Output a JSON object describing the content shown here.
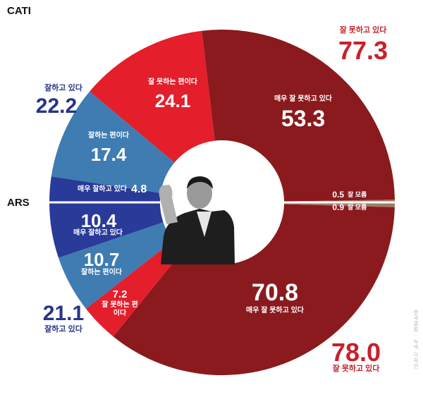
{
  "method_top": "CATI",
  "method_bottom": "ARS",
  "credit": "한국갤럽 · 녹색 디자인",
  "chart_data": {
    "type": "pie",
    "subtype": "split-donut",
    "panels": [
      {
        "method": "CATI",
        "half": "top",
        "slices": [
          {
            "label": "매우 잘하고 있다",
            "value": 4.8,
            "color": "#2a3a98",
            "group": "positive"
          },
          {
            "label": "잘하는 편이다",
            "value": 17.4,
            "color": "#3e7cb2",
            "group": "positive"
          },
          {
            "label": "잘 못하는 편이다",
            "value": 24.1,
            "color": "#e41e2b",
            "group": "negative"
          },
          {
            "label": "매우 잘 못하고 있다",
            "value": 53.3,
            "color": "#8a1a1e",
            "group": "negative"
          },
          {
            "label": "잘 모름",
            "value": 0.5,
            "color": "#a07a66",
            "group": "unknown"
          }
        ],
        "totals": [
          {
            "label": "잘하고 있다",
            "value": 22.2,
            "color": "#26348a"
          },
          {
            "label": "잘 못하고 있다",
            "value": 77.3,
            "color": "#c8202a"
          }
        ]
      },
      {
        "method": "ARS",
        "half": "bottom",
        "slices": [
          {
            "label": "매우 잘하고 있다",
            "value": 10.4,
            "color": "#2a3a98",
            "group": "positive"
          },
          {
            "label": "잘하는 편이다",
            "value": 10.7,
            "color": "#3e7cb2",
            "group": "positive"
          },
          {
            "label": "잘 못하는 편이다",
            "value": 7.2,
            "color": "#e41e2b",
            "group": "negative"
          },
          {
            "label": "매우 잘 못하고 있다",
            "value": 70.8,
            "color": "#8a1a1e",
            "group": "negative"
          },
          {
            "label": "잘 모름",
            "value": 0.9,
            "color": "#a07a66",
            "group": "unknown"
          }
        ],
        "totals": [
          {
            "label": "잘하고 있다",
            "value": 21.1,
            "color": "#26348a"
          },
          {
            "label": "잘 못하고 있다",
            "value": 78.0,
            "color": "#c8202a"
          }
        ]
      }
    ]
  }
}
